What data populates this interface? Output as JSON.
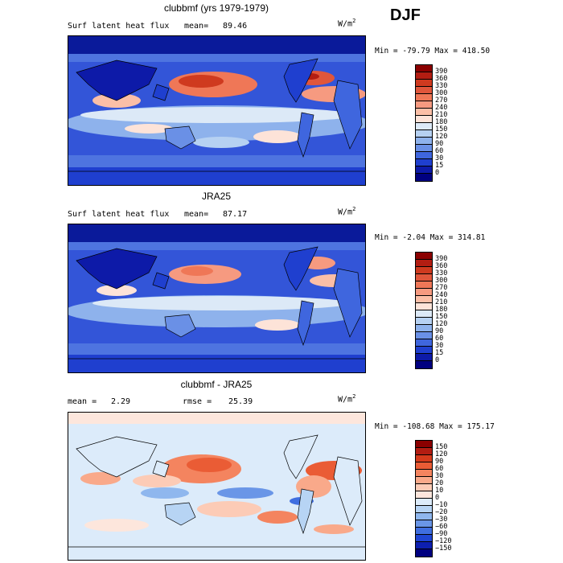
{
  "season": "DJF",
  "panels": [
    {
      "id": "model",
      "title": "clubbmf (yrs 1979-1979)",
      "left_label": "Surf latent heat flux",
      "stat_label": "mean=",
      "stat_value": "89.46",
      "extra_label": "",
      "extra_value": "",
      "units": "W/m",
      "units_exp": "2",
      "min_label": "Min =",
      "min_value": "-79.79",
      "max_label": "Max =",
      "max_value": "418.50",
      "colorbar_levels": [
        "390",
        "360",
        "330",
        "300",
        "270",
        "240",
        "210",
        "180",
        "150",
        "120",
        "90",
        "60",
        "30",
        "15",
        "0"
      ],
      "colorbar_colors": [
        "#8b0000",
        "#b31d12",
        "#cf3a1f",
        "#e0563b",
        "#ef7757",
        "#f69a80",
        "#fbbfa7",
        "#fde3d8",
        "#dce9f7",
        "#b6d1f2",
        "#8eb2ec",
        "#6a90e6",
        "#3f66de",
        "#1f3fcf",
        "#0d1aa8",
        "#000080"
      ]
    },
    {
      "id": "obs",
      "title": "JRA25",
      "left_label": "Surf latent heat flux",
      "stat_label": "mean=",
      "stat_value": "87.17",
      "extra_label": "",
      "extra_value": "",
      "units": "W/m",
      "units_exp": "2",
      "min_label": "Min =",
      "min_value": "-2.04",
      "max_label": "Max =",
      "max_value": "314.81",
      "colorbar_levels": [
        "390",
        "360",
        "330",
        "300",
        "270",
        "240",
        "210",
        "180",
        "150",
        "120",
        "90",
        "60",
        "30",
        "15",
        "0"
      ],
      "colorbar_colors": [
        "#8b0000",
        "#b31d12",
        "#cf3a1f",
        "#e0563b",
        "#ef7757",
        "#f69a80",
        "#fbbfa7",
        "#fde3d8",
        "#dce9f7",
        "#b6d1f2",
        "#8eb2ec",
        "#6a90e6",
        "#3f66de",
        "#1f3fcf",
        "#0d1aa8",
        "#000080"
      ]
    },
    {
      "id": "diff",
      "title": "clubbmf - JRA25",
      "left_label": "",
      "stat_label": "mean =",
      "stat_value": "2.29",
      "extra_label": "rmse =",
      "extra_value": "25.39",
      "units": "W/m",
      "units_exp": "2",
      "min_label": "Min =",
      "min_value": "-108.68",
      "max_label": "Max =",
      "max_value": "175.17",
      "colorbar_levels": [
        "150",
        "120",
        "90",
        "60",
        "30",
        "20",
        "10",
        "0",
        "−10",
        "−20",
        "−30",
        "−60",
        "−90",
        "−120",
        "−150"
      ],
      "colorbar_colors": [
        "#8b0000",
        "#b31d12",
        "#d63b1c",
        "#ea5c35",
        "#f4845f",
        "#f9a98a",
        "#fccbb6",
        "#fde6dc",
        "#dcebfa",
        "#b7d4f4",
        "#8fb7ee",
        "#6a96e7",
        "#3f6ee0",
        "#1f45d3",
        "#0d1fb0",
        "#000080"
      ]
    }
  ],
  "chart_data": [
    {
      "type": "heatmap",
      "title": "clubbmf (yrs 1979-1979)",
      "variable": "Surf latent heat flux",
      "units": "W/m^2",
      "mean": 89.46,
      "min": -79.79,
      "max": 418.5,
      "contour_levels": [
        0,
        15,
        30,
        60,
        90,
        120,
        150,
        180,
        210,
        240,
        270,
        300,
        330,
        360,
        390
      ]
    },
    {
      "type": "heatmap",
      "title": "JRA25",
      "variable": "Surf latent heat flux",
      "units": "W/m^2",
      "mean": 87.17,
      "min": -2.04,
      "max": 314.81,
      "contour_levels": [
        0,
        15,
        30,
        60,
        90,
        120,
        150,
        180,
        210,
        240,
        270,
        300,
        330,
        360,
        390
      ]
    },
    {
      "type": "heatmap",
      "title": "clubbmf - JRA25",
      "variable": "Surf latent heat flux difference",
      "units": "W/m^2",
      "mean": 2.29,
      "rmse": 25.39,
      "min": -108.68,
      "max": 175.17,
      "contour_levels": [
        -150,
        -120,
        -90,
        -60,
        -30,
        -20,
        -10,
        0,
        10,
        20,
        30,
        60,
        90,
        120,
        150
      ]
    }
  ]
}
